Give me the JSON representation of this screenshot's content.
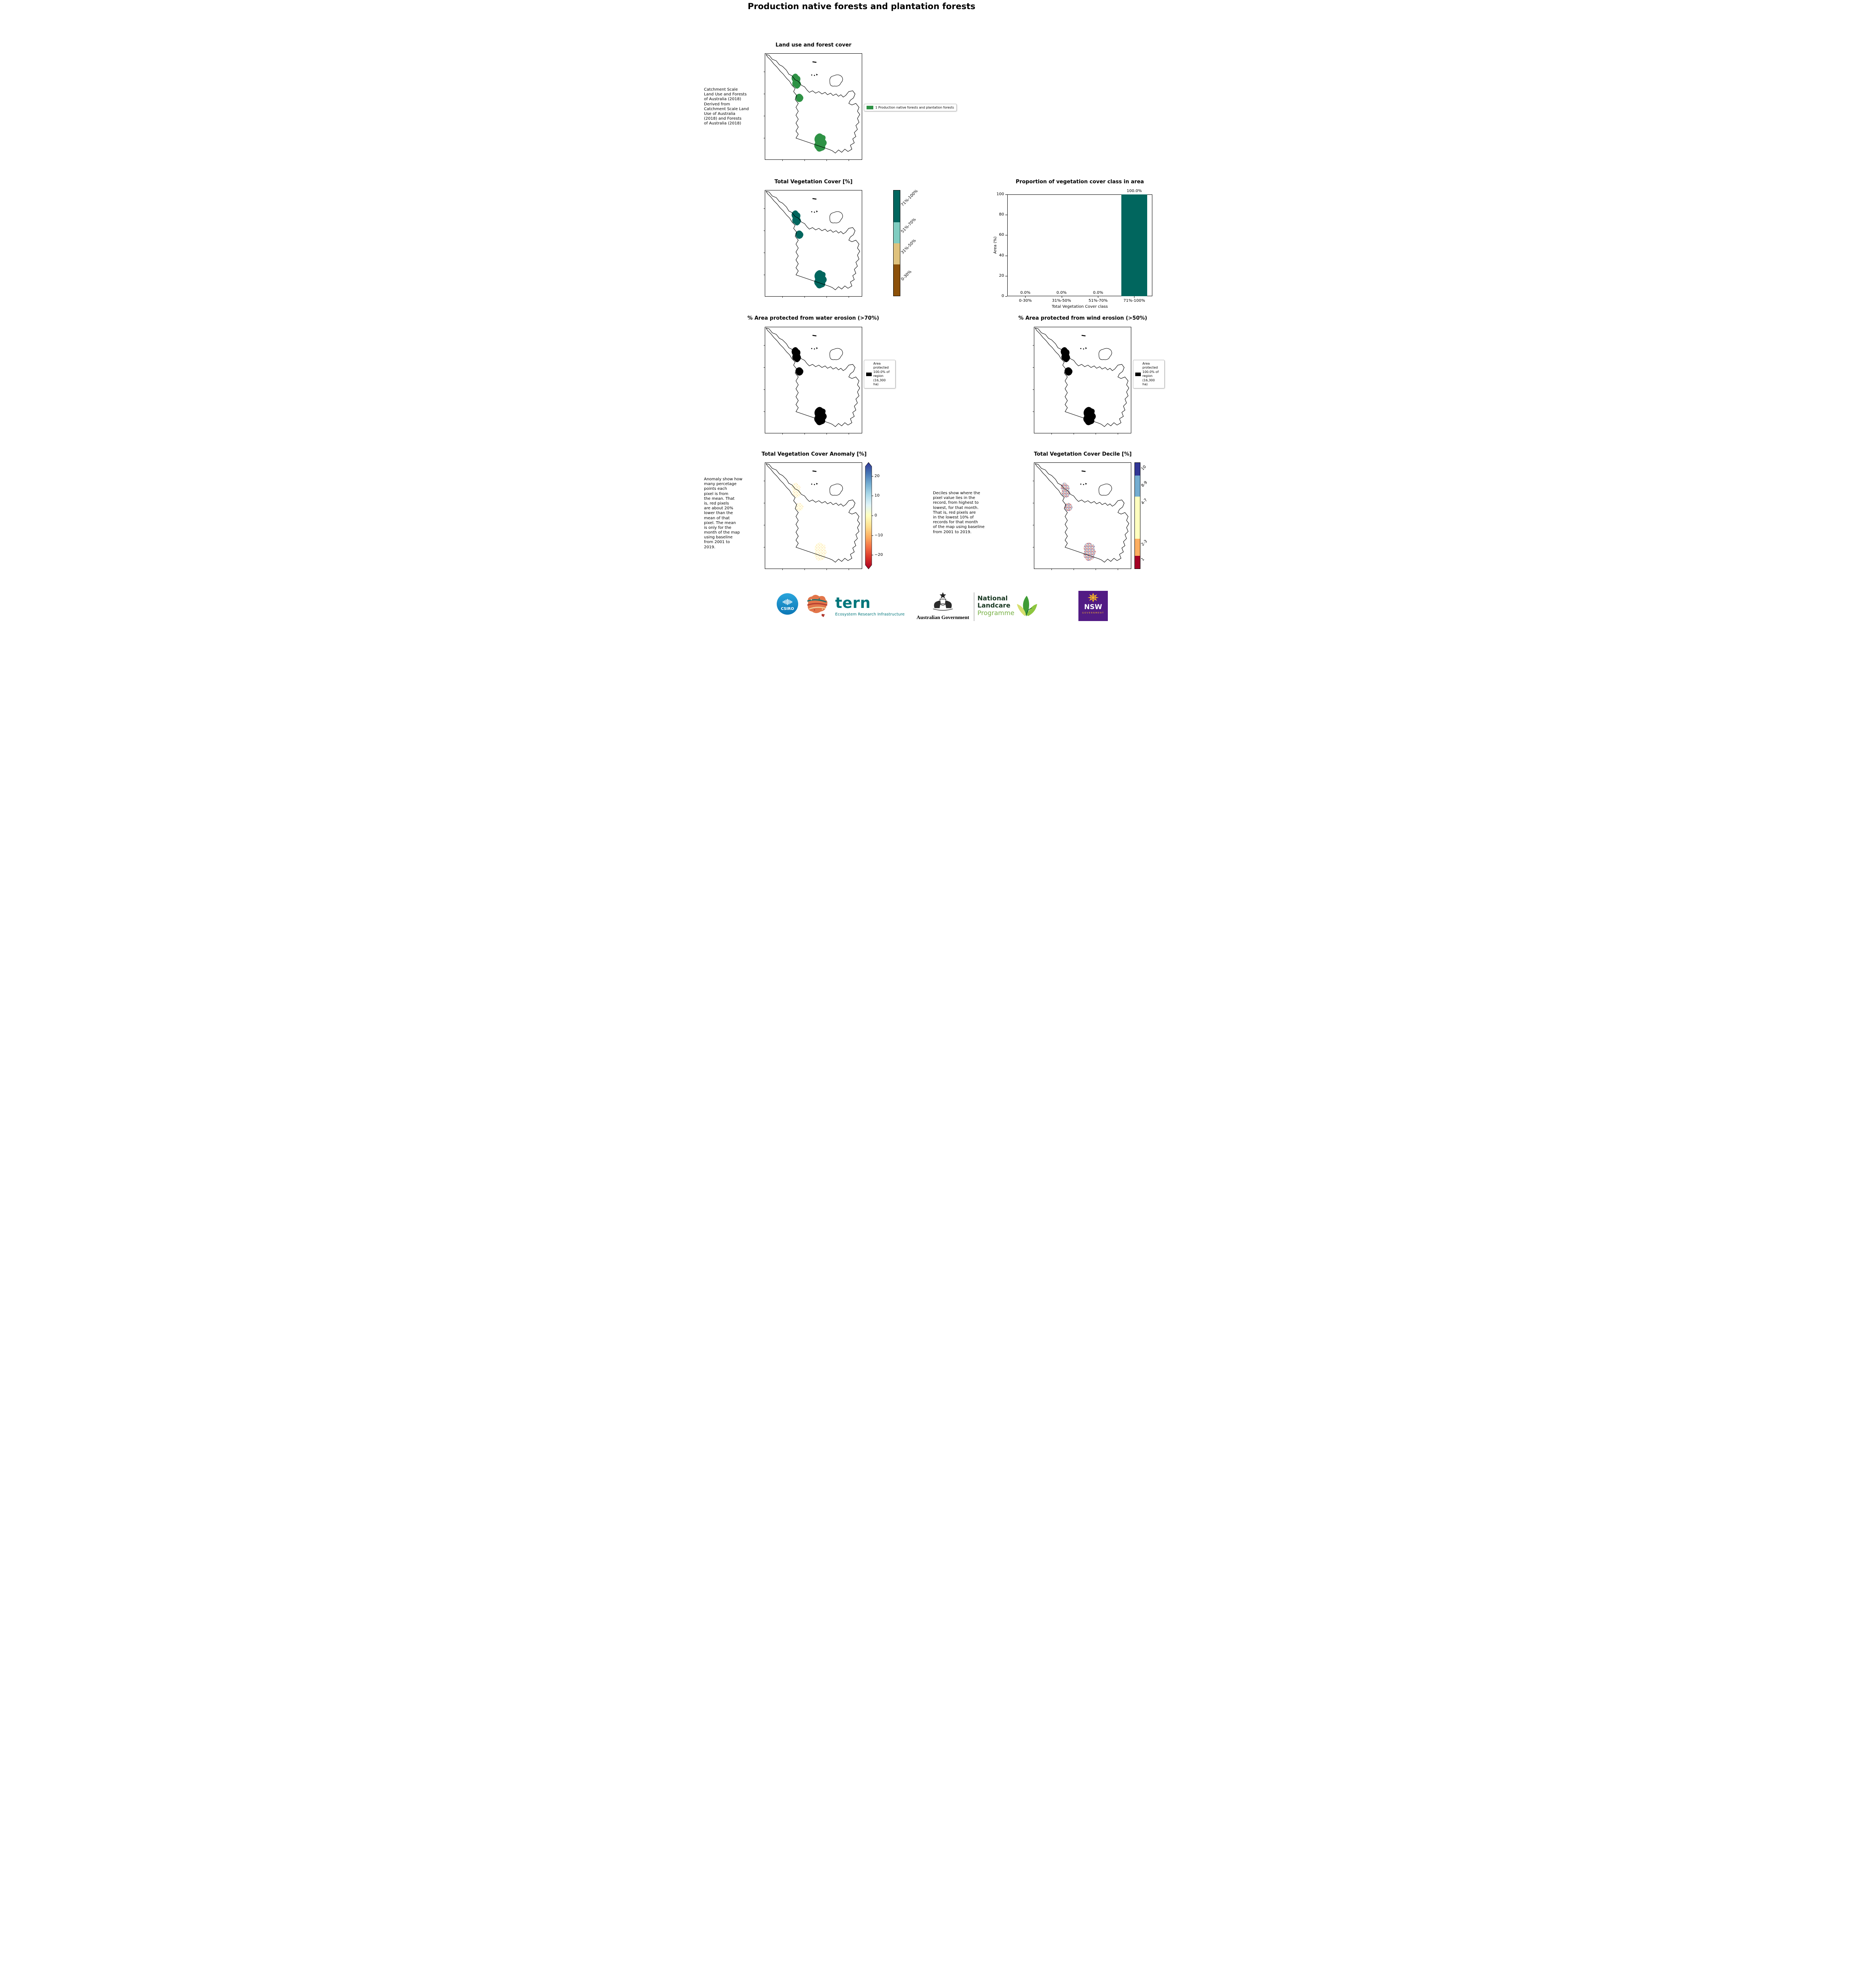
{
  "page_title": "Production native forests and plantation forests",
  "panels": {
    "landuse": {
      "title": "Land use and forest cover",
      "side_note": "Catchment Scale\nLand Use and Forests\nof Australia (2018)\nDerived from\nCatchment Scale Land\nUse of Australia\n(2018) and Forests\nof Australia (2018)",
      "legend_label": "1 Production native forests and plantation forests",
      "patch_color": "#2e9245"
    },
    "veg_cover": {
      "title": "Total Vegetation Cover [%]",
      "patch_color": "#01665e",
      "colorbar": [
        {
          "label": "71%-100%",
          "color": "#01665e"
        },
        {
          "label": "51%-70%",
          "color": "#80cdc1"
        },
        {
          "label": "31%-50%",
          "color": "#dfc27d"
        },
        {
          "label": "0-30%",
          "color": "#8c510a"
        }
      ]
    },
    "water_erosion": {
      "title": "% Area protected from water erosion (>70%)",
      "legend_text": "Area\nprotected\n100.0% of\nregion\n(16,300\nha)",
      "patch_color": "#000000"
    },
    "wind_erosion": {
      "title": "% Area protected from wind erosion (>50%)",
      "legend_text": "Area\nprotected\n100.0% of\nregion\n(16,300\nha)",
      "patch_color": "#000000"
    },
    "anomaly": {
      "title": "Total Vegetation Cover Anomaly [%]",
      "note": "Anomaly show how\nmany percetage\npoints each\npixel is from\nthe mean. That\nis, red pixels\nare about 20%\nlower than the\nmean of that\npixel. The mean\nis only for the\nmonth of the map\nusing baseline\nfrom 2001 to\n2019.",
      "ticks": [
        "20",
        "10",
        "0",
        "−10",
        "−20"
      ],
      "gradient": [
        "#313695",
        "#4575b4",
        "#74add1",
        "#abd9e9",
        "#e0f3f8",
        "#ffffbf",
        "#fee090",
        "#fdae61",
        "#f46d43",
        "#d73027",
        "#a50026"
      ]
    },
    "decile": {
      "title": "Total Vegetation Cover Decile [%]",
      "note": "Deciles show where the\npixel value lies in the\nrecord, from highest to\nlowest, for that month.\nThat is, red pixels are\nin the lowest 10% of\nrecords for that month\nof the map using baseline\nfrom 2001 to 2019.",
      "colorbar": [
        {
          "label": "10",
          "color": "#313695"
        },
        {
          "label": "8-9",
          "color": "#74add1"
        },
        {
          "label": "4-7",
          "color": "#ffffbf"
        },
        {
          "label": "2-3",
          "color": "#fdae61"
        },
        {
          "label": "1",
          "color": "#a50026"
        }
      ]
    }
  },
  "chart_data": {
    "type": "bar",
    "title": "Proportion of vegetation cover class in area",
    "categories": [
      "0-30%",
      "31%-50%",
      "51%-70%",
      "71%-100%"
    ],
    "values": [
      0.0,
      0.0,
      0.0,
      100.0
    ],
    "value_labels": [
      "0.0%",
      "0.0%",
      "0.0%",
      "100.0%"
    ],
    "xlabel": "Total Vegetation Cover class",
    "ylabel": "Area (%)",
    "ylim": [
      0,
      100
    ],
    "yticks": [
      "0",
      "20",
      "40",
      "60",
      "80",
      "100"
    ],
    "bar_color": "#01665e",
    "grid": false,
    "legend_position": "none"
  },
  "footer": {
    "csiro": "CSIRO",
    "tern_name": "tern",
    "tern_subtitle": "Ecosystem Research Infrastructure",
    "aus_gov": "Australian Government",
    "landcare_line1": "National",
    "landcare_line2": "Landcare",
    "landcare_line3": "Programme",
    "nsw_line1": "NSW",
    "nsw_line2": "GOVERNMENT"
  }
}
